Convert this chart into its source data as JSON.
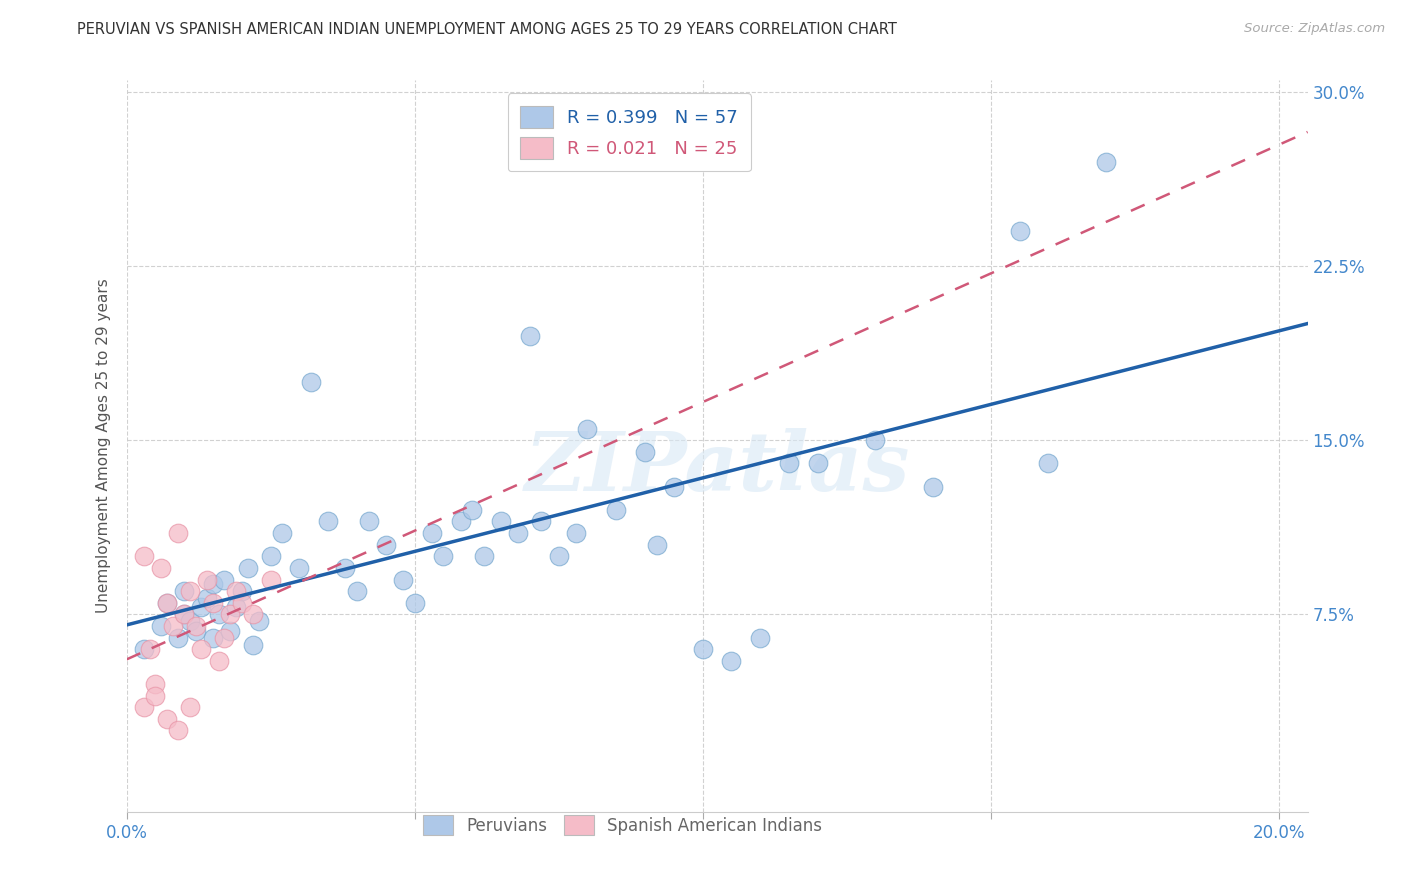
{
  "title": "PERUVIAN VS SPANISH AMERICAN INDIAN UNEMPLOYMENT AMONG AGES 25 TO 29 YEARS CORRELATION CHART",
  "source": "Source: ZipAtlas.com",
  "ylabel": "Unemployment Among Ages 25 to 29 years",
  "xlim": [
    0.0,
    0.205
  ],
  "ylim": [
    -0.01,
    0.305
  ],
  "blue_R": 0.399,
  "blue_N": 57,
  "pink_R": 0.021,
  "pink_N": 25,
  "blue_color": "#aec8e8",
  "blue_edge": "#7aaad0",
  "pink_color": "#f5bcc8",
  "pink_edge": "#e896a8",
  "blue_line_color": "#2060a8",
  "pink_line_color": "#d05878",
  "watermark_color": "#d8e8f5",
  "blue_x": [
    0.003,
    0.006,
    0.007,
    0.009,
    0.01,
    0.01,
    0.011,
    0.012,
    0.013,
    0.014,
    0.015,
    0.015,
    0.016,
    0.017,
    0.018,
    0.019,
    0.02,
    0.021,
    0.022,
    0.023,
    0.025,
    0.027,
    0.03,
    0.032,
    0.035,
    0.038,
    0.04,
    0.042,
    0.045,
    0.048,
    0.05,
    0.053,
    0.055,
    0.058,
    0.06,
    0.062,
    0.065,
    0.068,
    0.07,
    0.072,
    0.075,
    0.078,
    0.08,
    0.085,
    0.09,
    0.092,
    0.095,
    0.1,
    0.105,
    0.11,
    0.115,
    0.12,
    0.13,
    0.14,
    0.155,
    0.16,
    0.17
  ],
  "blue_y": [
    0.06,
    0.07,
    0.08,
    0.065,
    0.075,
    0.085,
    0.072,
    0.068,
    0.078,
    0.082,
    0.088,
    0.065,
    0.075,
    0.09,
    0.068,
    0.078,
    0.085,
    0.095,
    0.062,
    0.072,
    0.1,
    0.11,
    0.095,
    0.175,
    0.115,
    0.095,
    0.085,
    0.115,
    0.105,
    0.09,
    0.08,
    0.11,
    0.1,
    0.115,
    0.12,
    0.1,
    0.115,
    0.11,
    0.195,
    0.115,
    0.1,
    0.11,
    0.155,
    0.12,
    0.145,
    0.105,
    0.13,
    0.06,
    0.055,
    0.065,
    0.14,
    0.14,
    0.15,
    0.13,
    0.24,
    0.14,
    0.27
  ],
  "pink_x": [
    0.003,
    0.004,
    0.005,
    0.006,
    0.007,
    0.008,
    0.009,
    0.01,
    0.011,
    0.012,
    0.013,
    0.014,
    0.015,
    0.016,
    0.017,
    0.018,
    0.019,
    0.02,
    0.022,
    0.025,
    0.003,
    0.005,
    0.007,
    0.009,
    0.011
  ],
  "pink_y": [
    0.1,
    0.06,
    0.045,
    0.095,
    0.08,
    0.07,
    0.11,
    0.075,
    0.085,
    0.07,
    0.06,
    0.09,
    0.08,
    0.055,
    0.065,
    0.075,
    0.085,
    0.08,
    0.075,
    0.09,
    0.035,
    0.04,
    0.03,
    0.025,
    0.035
  ]
}
